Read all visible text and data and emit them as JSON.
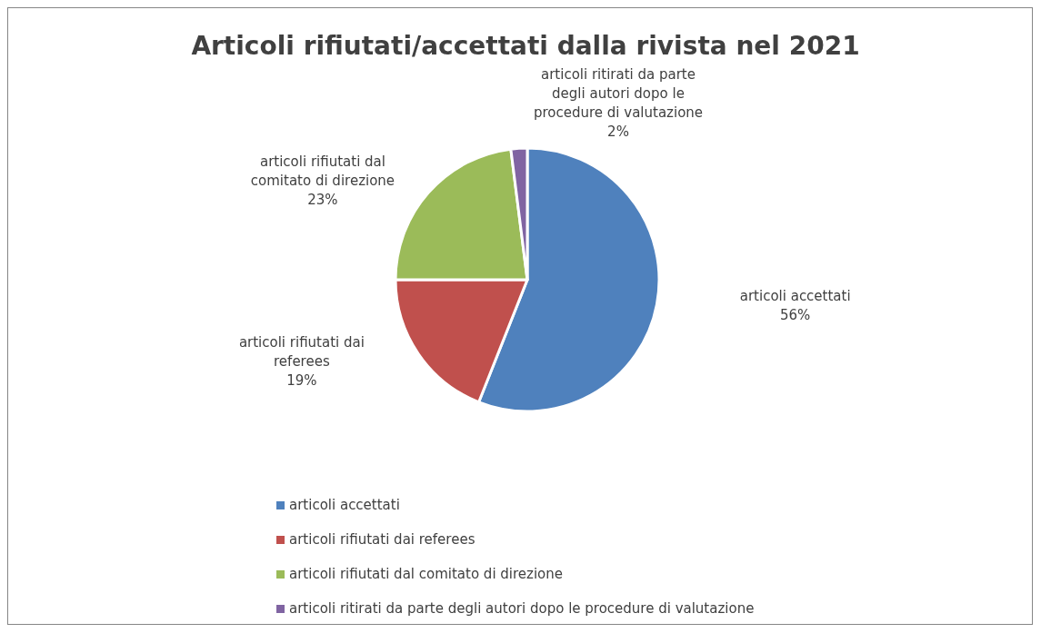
{
  "chart_data": {
    "type": "pie",
    "title": "Articoli rifiutati/accettati dalla rivista nel 2021",
    "categories": [
      "articoli accettati",
      "articoli rifiutati dai referees",
      "articoli rifiutati dal comitato di direzione",
      "articoli ritirati da parte degli autori dopo le procedure di valutazione"
    ],
    "values": [
      56,
      19,
      23,
      2
    ],
    "colors": [
      "#4f81bd",
      "#c0504d",
      "#9bbb59",
      "#8064a2"
    ],
    "value_labels": [
      "56%",
      "19%",
      "23%",
      "2%"
    ],
    "legend": "bottom"
  }
}
